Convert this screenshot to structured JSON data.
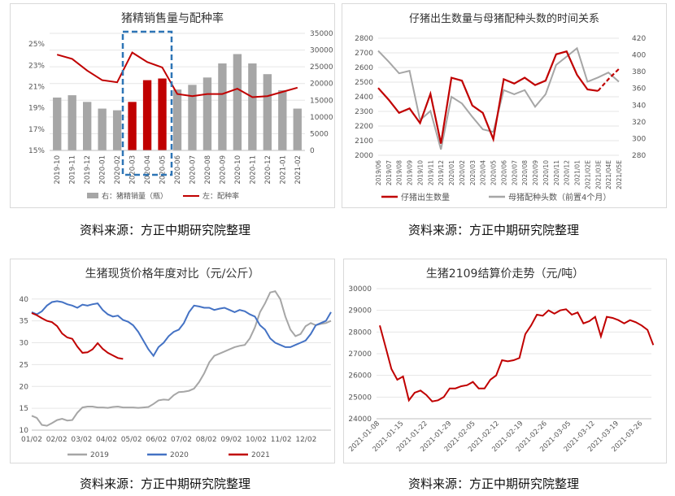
{
  "source_note": "资料来源：方正中期研究院整理",
  "chart_data": [
    {
      "type": "bar",
      "title": "猪精销售量与配种率",
      "categories": [
        "2019-10",
        "2019-11",
        "2019-12",
        "2020-01",
        "2020-02",
        "2020-03",
        "2020-04",
        "2020-05",
        "2020-06",
        "2020-07",
        "2020-08",
        "2020-09",
        "2020-10",
        "2020-11",
        "2020-12",
        "2021-01",
        "2021-02"
      ],
      "series": [
        {
          "name": "右：猪精销量（瓶）",
          "axis": "right",
          "values": [
            15800,
            16500,
            14500,
            12500,
            12000,
            14500,
            21000,
            21500,
            18200,
            19600,
            21800,
            26000,
            28800,
            26000,
            22800,
            18000,
            12500
          ]
        },
        {
          "name": "左：配种率",
          "axis": "left",
          "values": [
            24.0,
            23.6,
            22.5,
            21.6,
            21.4,
            24.2,
            23.3,
            22.8,
            20.3,
            20.1,
            20.3,
            20.3,
            20.8,
            20.0,
            20.1,
            20.5,
            20.9
          ]
        }
      ],
      "highlight_bar_indices": [
        5,
        6,
        7
      ],
      "yticks_left": [
        "15%",
        "17%",
        "19%",
        "21%",
        "23%",
        "25%"
      ],
      "ylim_left": [
        15,
        26
      ],
      "yticks_right": [
        "0",
        "5000",
        "10000",
        "15000",
        "20000",
        "25000",
        "30000",
        "35000"
      ],
      "ylim_right": [
        0,
        35000
      ],
      "colors": {
        "bar": "#a6a6a6",
        "bar_highlight": "#c00000",
        "line": "#c00000",
        "box": "#2e75b6"
      }
    },
    {
      "type": "line",
      "title": "仔猪出生数量与母猪配种头数的时间关系",
      "categories": [
        "2019/06",
        "2019/07",
        "2019/08",
        "2019/09",
        "2019/10",
        "2019/11",
        "2019/12",
        "2020/01",
        "2020/02",
        "2020/03",
        "2020/04",
        "2020/05",
        "2020/06",
        "2020/07",
        "2020/08",
        "2020/09",
        "2020/10",
        "2020/11",
        "2020/12",
        "2021/01",
        "2021/02E",
        "2021/03E",
        "2021/04E",
        "2021/05E"
      ],
      "series": [
        {
          "name": "仔猪出生数量",
          "axis": "left",
          "values": [
            2460,
            2380,
            2290,
            2320,
            2220,
            2420,
            2080,
            2530,
            2510,
            2340,
            2290,
            2110,
            2520,
            2490,
            2530,
            2480,
            2510,
            2690,
            2710,
            2550,
            2450,
            2440,
            2520,
            2590
          ],
          "dashed_from_index": 21
        },
        {
          "name": "母猪配种头数（前置4个月）",
          "axis": "right",
          "values": [
            405,
            392,
            378,
            381,
            322,
            333,
            287,
            350,
            342,
            326,
            311,
            308,
            358,
            353,
            358,
            338,
            353,
            388,
            398,
            408,
            368,
            373,
            379,
            368
          ]
        }
      ],
      "yticks_left": [
        "2000",
        "2100",
        "2200",
        "2300",
        "2400",
        "2500",
        "2600",
        "2700",
        "2800"
      ],
      "ylim_left": [
        2000,
        2800
      ],
      "yticks_right": [
        "280",
        "300",
        "320",
        "340",
        "360",
        "380",
        "400",
        "420"
      ],
      "ylim_right": [
        280,
        420
      ],
      "colors": {
        "s1": "#c00000",
        "s2": "#a6a6a6"
      }
    },
    {
      "type": "line",
      "title": "生猪现货价格年度对比（元/公斤）",
      "x_ticks": [
        "01/02",
        "02/02",
        "03/02",
        "04/02",
        "05/02",
        "06/02",
        "07/02",
        "08/02",
        "09/02",
        "10/02",
        "11/02",
        "12/02"
      ],
      "series": [
        {
          "name": "2019",
          "values": [
            13.3,
            12.8,
            11.2,
            11.0,
            11.6,
            12.3,
            12.6,
            12.2,
            12.3,
            14.0,
            15.2,
            15.4,
            15.4,
            15.2,
            15.2,
            15.1,
            15.3,
            15.4,
            15.2,
            15.2,
            15.2,
            15.1,
            15.2,
            15.3,
            16.0,
            16.8,
            17.0,
            16.9,
            18.0,
            18.7,
            18.8,
            19.0,
            19.5,
            21.0,
            23.0,
            25.5,
            27.0,
            27.5,
            28.0,
            28.5,
            29.0,
            29.3,
            29.5,
            31.0,
            33.5,
            37.0,
            39.0,
            41.5,
            41.8,
            40.0,
            36.0,
            33.0,
            31.5,
            32.0,
            33.8,
            34.5,
            34.0,
            34.3,
            34.5,
            35.0
          ]
        },
        {
          "name": "2020",
          "values": [
            37.0,
            36.5,
            37.2,
            38.5,
            39.3,
            39.5,
            39.3,
            38.8,
            38.5,
            38.0,
            38.7,
            38.5,
            38.8,
            39.0,
            37.5,
            36.5,
            36.0,
            36.2,
            35.2,
            34.8,
            34.0,
            32.5,
            30.5,
            28.5,
            27.0,
            29.0,
            30.0,
            31.5,
            32.5,
            33.0,
            34.5,
            37.0,
            38.5,
            38.3,
            38.0,
            38.0,
            37.5,
            37.8,
            38.0,
            37.5,
            37.0,
            37.5,
            37.2,
            36.5,
            36.0,
            34.0,
            33.0,
            31.0,
            30.0,
            29.5,
            29.0,
            29.0,
            29.5,
            30.0,
            30.5,
            32.0,
            34.0,
            34.5,
            35.0,
            37.0
          ]
        },
        {
          "name": "2021",
          "values": [
            36.8,
            36.3,
            35.6,
            35.0,
            34.7,
            33.8,
            32.1,
            31.2,
            30.9,
            29.1,
            27.7,
            27.8,
            28.5,
            29.9,
            28.6,
            27.7,
            27.1,
            26.5,
            26.3
          ]
        }
      ],
      "ylim": [
        10,
        42
      ],
      "yticks": [
        "10",
        "15",
        "20",
        "25",
        "30",
        "35",
        "40"
      ],
      "colors": {
        "2019": "#a6a6a6",
        "2020": "#4472c4",
        "2021": "#c00000"
      }
    },
    {
      "type": "line",
      "title": "生猪2109结算价走势（元/吨）",
      "x_ticks": [
        "2021-01-08",
        "2021-01-15",
        "2021-01-22",
        "2021-01-29",
        "2021-02-05",
        "2021-02-12",
        "2021-02-19",
        "2021-02-26",
        "2021-03-05",
        "2021-03-12",
        "2021-03-19",
        "2021-03-26"
      ],
      "values": [
        28300,
        27300,
        26300,
        25800,
        25950,
        24850,
        25200,
        25300,
        25100,
        24800,
        24850,
        25000,
        25400,
        25400,
        25500,
        25550,
        25700,
        25400,
        25400,
        25800,
        26000,
        26700,
        26650,
        26700,
        26800,
        27900,
        28300,
        28800,
        28750,
        29000,
        28850,
        29000,
        29050,
        28800,
        28900,
        28400,
        28500,
        28700,
        27800,
        28700,
        28650,
        28550,
        28400,
        28550,
        28450,
        28300,
        28100,
        27400
      ],
      "yticks": [
        "24000",
        "25000",
        "26000",
        "27000",
        "28000",
        "29000",
        "30000"
      ],
      "ylim": [
        24000,
        30000
      ],
      "colors": {
        "line": "#c00000"
      }
    }
  ]
}
